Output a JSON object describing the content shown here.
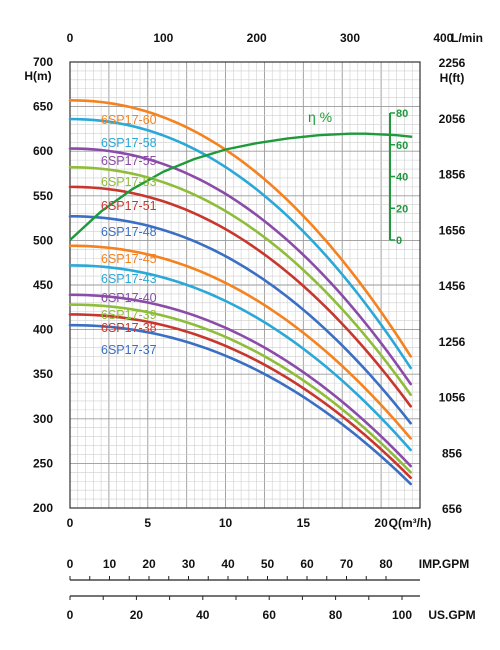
{
  "chart_data": {
    "type": "line",
    "x_axis": {
      "label": "Q(m³/h)",
      "range": [
        0,
        22.5
      ],
      "ticks": [
        0,
        5,
        10,
        15,
        20
      ]
    },
    "x_axis_top": {
      "label": "L/min",
      "ticks": [
        0,
        100,
        200,
        300,
        400
      ]
    },
    "y_axis": {
      "label": "H(m)",
      "range": [
        200,
        700
      ],
      "ticks": [
        200,
        250,
        300,
        350,
        400,
        450,
        500,
        550,
        600,
        650,
        700
      ]
    },
    "y_axis_right": {
      "label": "H(ft)",
      "ticks": [
        "656",
        "856",
        "1056",
        "1256",
        "1456",
        "1656",
        "1856",
        "2056",
        "2256"
      ]
    },
    "efficiency_axis": {
      "label": "η %",
      "ticks": [
        0,
        20,
        40,
        60,
        80
      ],
      "color": "#1e9a3c"
    },
    "imp_gpm": {
      "label": "IMP.GPM",
      "ticks": [
        0,
        10,
        20,
        30,
        40,
        50,
        60,
        70,
        80
      ]
    },
    "us_gpm": {
      "label": "US.GPM",
      "ticks": [
        0,
        20,
        40,
        60,
        80,
        100
      ]
    },
    "grid": true,
    "series": [
      {
        "name": "6SP17-60",
        "color": "#f5821f",
        "h0": 657,
        "hend": 370
      },
      {
        "name": "6SP17-58",
        "color": "#2aa8d8",
        "h0": 636,
        "hend": 357
      },
      {
        "name": "6SP17-55",
        "color": "#8a4ca8",
        "h0": 603,
        "hend": 339
      },
      {
        "name": "6SP17-53",
        "color": "#8fbd3a",
        "h0": 582,
        "hend": 327
      },
      {
        "name": "6SP17-51",
        "color": "#c8372d",
        "h0": 560,
        "hend": 314
      },
      {
        "name": "6SP17-48",
        "color": "#3a6fc4",
        "h0": 527,
        "hend": 295
      },
      {
        "name": "6SP17-45",
        "color": "#f5821f",
        "h0": 494,
        "hend": 278
      },
      {
        "name": "6SP17-43",
        "color": "#2aa8d8",
        "h0": 472,
        "hend": 265
      },
      {
        "name": "6SP17-40",
        "color": "#8a4ca8",
        "h0": 439,
        "hend": 247
      },
      {
        "name": "6SP17-39",
        "color": "#8fbd3a",
        "h0": 428,
        "hend": 240
      },
      {
        "name": "6SP17-38",
        "color": "#c8372d",
        "h0": 417,
        "hend": 234
      },
      {
        "name": "6SP17-37",
        "color": "#3a6fc4",
        "h0": 405,
        "hend": 227
      }
    ],
    "efficiency_curve": {
      "x": [
        0,
        2,
        4,
        6,
        8,
        10,
        12,
        14,
        16,
        18,
        19,
        20,
        21,
        22
      ],
      "y": [
        0,
        18,
        32,
        43,
        51,
        57,
        61,
        64,
        66,
        67,
        67,
        66.5,
        66,
        65
      ]
    }
  }
}
